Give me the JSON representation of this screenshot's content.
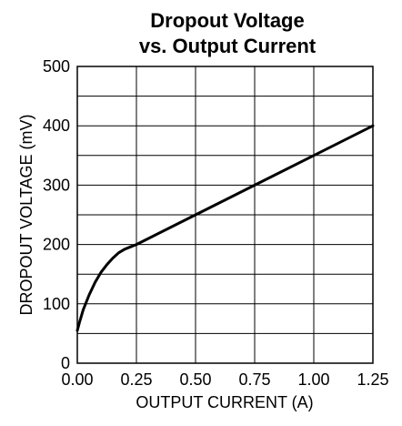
{
  "chart_data": {
    "type": "line",
    "title": [
      "Dropout Voltage",
      "vs. Output Current"
    ],
    "xlabel": "OUTPUT CURRENT (A)",
    "ylabel": "DROPOUT VOLTAGE (mV)",
    "xlim": [
      0,
      1.25
    ],
    "ylim": [
      0,
      500
    ],
    "x_ticks": [
      0,
      0.25,
      0.5,
      0.75,
      1.0,
      1.25
    ],
    "x_tick_labels": [
      "0.00",
      "0.25",
      "0.50",
      "0.75",
      "1.00",
      "1.25"
    ],
    "y_ticks": [
      0,
      100,
      200,
      300,
      400,
      500
    ],
    "y_tick_labels": [
      "0",
      "100",
      "200",
      "300",
      "400",
      "500"
    ],
    "grid": true,
    "series": [
      {
        "x": [
          0.0,
          0.01,
          0.025,
          0.05,
          0.075,
          0.1,
          0.125,
          0.15,
          0.175,
          0.2,
          0.225,
          0.25,
          0.5,
          0.75,
          1.0,
          1.25
        ],
        "y": [
          55,
          70,
          90,
          115,
          136,
          153,
          166,
          177,
          186,
          192,
          196,
          200,
          250,
          300,
          350,
          400
        ]
      }
    ]
  }
}
